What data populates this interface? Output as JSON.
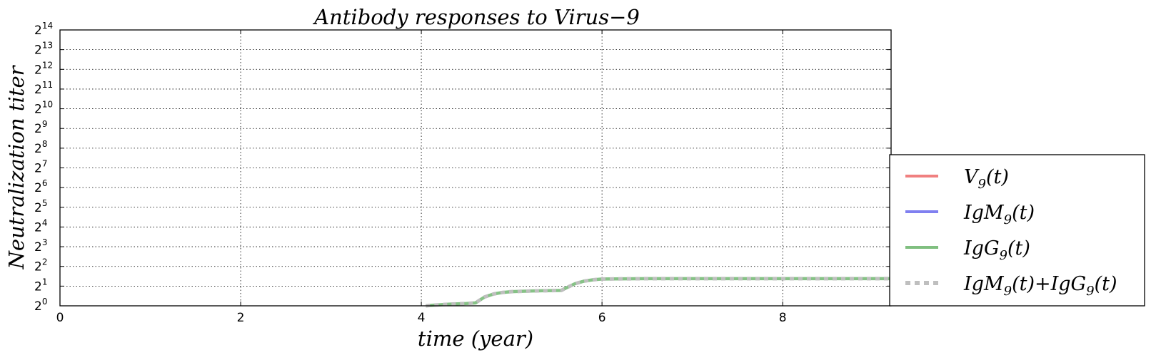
{
  "chart_data": {
    "type": "line",
    "title": "Antibody responses to Virus−9",
    "xlabel": "time (year)",
    "ylabel": "Neutralization  titer",
    "xlim": [
      0,
      9.2
    ],
    "ylim_log2": [
      0,
      14
    ],
    "y_scale": "log2",
    "grid": true,
    "legend_placement": "outside-right-bottom",
    "x_ticks": [
      {
        "value": 0,
        "label": "0"
      },
      {
        "value": 2,
        "label": "2"
      },
      {
        "value": 4,
        "label": "4"
      },
      {
        "value": 6,
        "label": "6"
      },
      {
        "value": 8,
        "label": "8"
      }
    ],
    "y_ticks": [
      {
        "exp": 0,
        "base": "2",
        "sup": "0"
      },
      {
        "exp": 1,
        "base": "2",
        "sup": "1"
      },
      {
        "exp": 2,
        "base": "2",
        "sup": "2"
      },
      {
        "exp": 3,
        "base": "2",
        "sup": "3"
      },
      {
        "exp": 4,
        "base": "2",
        "sup": "4"
      },
      {
        "exp": 5,
        "base": "2",
        "sup": "5"
      },
      {
        "exp": 6,
        "base": "2",
        "sup": "6"
      },
      {
        "exp": 7,
        "base": "2",
        "sup": "7"
      },
      {
        "exp": 8,
        "base": "2",
        "sup": "8"
      },
      {
        "exp": 9,
        "base": "2",
        "sup": "9"
      },
      {
        "exp": 10,
        "base": "2",
        "sup": "10"
      },
      {
        "exp": 11,
        "base": "2",
        "sup": "11"
      },
      {
        "exp": 12,
        "base": "2",
        "sup": "12"
      },
      {
        "exp": 13,
        "base": "2",
        "sup": "13"
      },
      {
        "exp": 14,
        "base": "2",
        "sup": "14"
      }
    ],
    "series": [
      {
        "name": "V9(t)",
        "label_base": "V",
        "label_sub": "9",
        "label_tail": "(t)",
        "color": "#f08080",
        "style": "solid",
        "x": [],
        "y_log2": []
      },
      {
        "name": "IgM9(t)",
        "label_base": "IgM",
        "label_sub": "9",
        "label_tail": "(t)",
        "color": "#8080f0",
        "style": "solid",
        "x": [],
        "y_log2": []
      },
      {
        "name": "IgG9(t)",
        "label_base": "IgG",
        "label_sub": "9",
        "label_tail": "(t)",
        "color": "#80bf80",
        "style": "solid",
        "x": [
          4.05,
          4.1,
          4.2,
          4.3,
          4.4,
          4.5,
          4.6,
          4.65,
          4.7,
          4.8,
          4.9,
          5.0,
          5.2,
          5.4,
          5.55,
          5.6,
          5.7,
          5.8,
          5.9,
          6.0,
          6.5,
          7.0,
          8.0,
          9.2
        ],
        "y_log2": [
          0.0,
          0.02,
          0.05,
          0.08,
          0.1,
          0.12,
          0.15,
          0.3,
          0.45,
          0.6,
          0.68,
          0.72,
          0.75,
          0.77,
          0.78,
          0.9,
          1.12,
          1.25,
          1.32,
          1.36,
          1.38,
          1.38,
          1.38,
          1.38
        ]
      },
      {
        "name": "IgM9(t)+IgG9(t)",
        "label_base": "IgM",
        "label_sub": "9",
        "label_tail": "(t)+IgG",
        "label_sub2": "9",
        "label_tail2": "(t)",
        "color": "#bfbfbf",
        "style": "dotted",
        "x": [
          4.05,
          4.1,
          4.2,
          4.3,
          4.4,
          4.5,
          4.6,
          4.65,
          4.7,
          4.8,
          4.9,
          5.0,
          5.2,
          5.4,
          5.55,
          5.6,
          5.7,
          5.8,
          5.9,
          6.0,
          6.5,
          7.0,
          8.0,
          9.2
        ],
        "y_log2": [
          0.0,
          0.02,
          0.05,
          0.08,
          0.1,
          0.12,
          0.15,
          0.3,
          0.45,
          0.6,
          0.68,
          0.72,
          0.75,
          0.77,
          0.78,
          0.9,
          1.12,
          1.25,
          1.32,
          1.36,
          1.38,
          1.38,
          1.38,
          1.38
        ]
      }
    ]
  }
}
